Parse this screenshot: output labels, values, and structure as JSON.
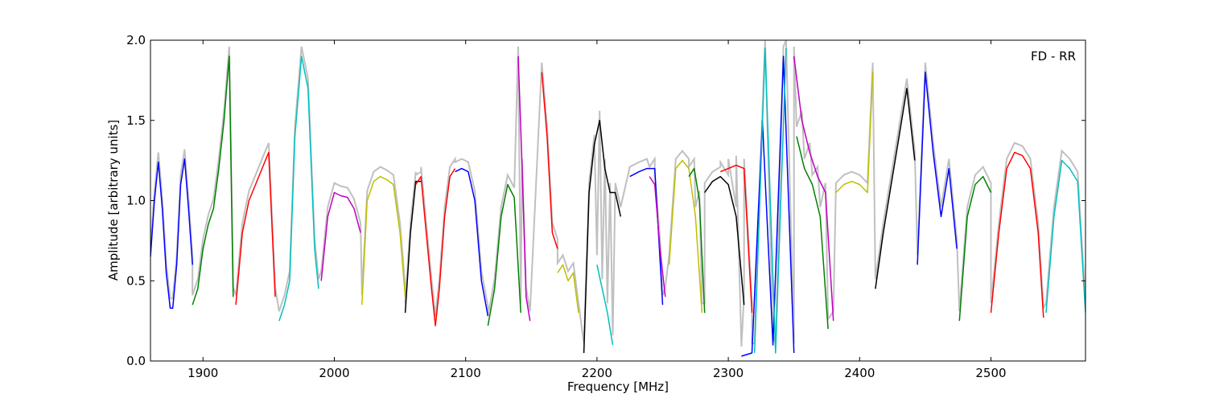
{
  "chart_data": {
    "type": "line",
    "annotation": "FD - RR",
    "xlabel": "Frequency [MHz]",
    "ylabel": "Amplitude [arbitrary units]",
    "xlim": [
      1860,
      2572
    ],
    "ylim": [
      0.0,
      2.0
    ],
    "xticks": [
      1900,
      2000,
      2100,
      2200,
      2300,
      2400,
      2500
    ],
    "xtick_labels": [
      "1900",
      "2000",
      "2100",
      "2200",
      "2300",
      "2400",
      "2500"
    ],
    "yticks": [
      0.0,
      0.5,
      1.0,
      1.5,
      2.0
    ],
    "ytick_labels": [
      "0.0",
      "0.5",
      "1.0",
      "1.5",
      "2.0"
    ],
    "grid": false,
    "background_series_color": "#c0c0c0",
    "series": [
      {
        "color": "#0000ff",
        "x": [
          1860,
          1863,
          1866,
          1869,
          1872,
          1875,
          1877,
          1880,
          1883,
          1886,
          1889,
          1892
        ],
        "y": [
          0.65,
          1.0,
          1.24,
          0.95,
          0.55,
          0.33,
          0.33,
          0.6,
          1.1,
          1.26,
          0.95,
          0.6
        ]
      },
      {
        "color": "#008000",
        "x": [
          1892,
          1896,
          1900,
          1904,
          1908,
          1912,
          1916,
          1920,
          1923
        ],
        "y": [
          0.35,
          0.45,
          0.7,
          0.85,
          0.95,
          1.2,
          1.5,
          1.9,
          0.4
        ]
      },
      {
        "color": "#ff0000",
        "x": [
          1925,
          1930,
          1935,
          1940,
          1945,
          1950,
          1955
        ],
        "y": [
          0.35,
          0.8,
          1.0,
          1.1,
          1.2,
          1.3,
          0.4
        ]
      },
      {
        "color": "#00bfbf",
        "x": [
          1958,
          1962,
          1966,
          1970,
          1975,
          1980,
          1985,
          1988
        ],
        "y": [
          0.25,
          0.35,
          0.5,
          1.4,
          1.9,
          1.7,
          0.7,
          0.45
        ]
      },
      {
        "color": "#bf00bf",
        "x": [
          1990,
          1995,
          2000,
          2005,
          2010,
          2015,
          2020
        ],
        "y": [
          0.5,
          0.9,
          1.05,
          1.03,
          1.02,
          0.95,
          0.8
        ]
      },
      {
        "color": "#bfbf00",
        "x": [
          2021,
          2025,
          2030,
          2035,
          2040,
          2045,
          2050,
          2054
        ],
        "y": [
          0.35,
          1.0,
          1.12,
          1.15,
          1.13,
          1.1,
          0.8,
          0.4
        ]
      },
      {
        "color": "#000000",
        "x": [
          2054,
          2058,
          2062,
          2066
        ],
        "y": [
          0.3,
          0.8,
          1.12,
          1.12
        ]
      },
      {
        "color": "#ff0000",
        "x": [
          2062,
          2066,
          2070,
          2074,
          2077,
          2080,
          2084,
          2088,
          2092
        ],
        "y": [
          1.1,
          1.15,
          0.8,
          0.45,
          0.22,
          0.45,
          0.9,
          1.15,
          1.2
        ]
      },
      {
        "color": "#0000ff",
        "x": [
          2092,
          2097,
          2102,
          2107,
          2112,
          2117
        ],
        "y": [
          1.18,
          1.2,
          1.18,
          1.0,
          0.5,
          0.28
        ]
      },
      {
        "color": "#008000",
        "x": [
          2117,
          2122,
          2127,
          2132,
          2137,
          2142
        ],
        "y": [
          0.22,
          0.45,
          0.9,
          1.1,
          1.02,
          0.3
        ]
      },
      {
        "color": "#bf00bf",
        "x": [
          2140,
          2143,
          2146,
          2149
        ],
        "y": [
          1.9,
          1.2,
          0.4,
          0.25
        ]
      },
      {
        "color": "#ff0000",
        "x": [
          2158,
          2162,
          2166,
          2170
        ],
        "y": [
          1.8,
          1.4,
          0.8,
          0.7
        ]
      },
      {
        "color": "#bfbf00",
        "x": [
          2170,
          2174,
          2178,
          2182,
          2186
        ],
        "y": [
          0.55,
          0.6,
          0.5,
          0.55,
          0.3
        ]
      },
      {
        "color": "#000000",
        "x": [
          2190,
          2194,
          2198,
          2202,
          2206,
          2210,
          2214,
          2218
        ],
        "y": [
          0.05,
          1.05,
          1.35,
          1.5,
          1.2,
          1.05,
          1.05,
          0.9
        ]
      },
      {
        "color": "#00bfbf",
        "x": [
          2200,
          2204,
          2208,
          2212
        ],
        "y": [
          0.6,
          0.45,
          0.3,
          0.1
        ]
      },
      {
        "color": "#0000ff",
        "x": [
          2225,
          2232,
          2238,
          2244,
          2250
        ],
        "y": [
          1.15,
          1.18,
          1.2,
          1.2,
          0.35
        ]
      },
      {
        "color": "#bf00bf",
        "x": [
          2240,
          2244,
          2248,
          2252
        ],
        "y": [
          1.15,
          1.1,
          0.7,
          0.4
        ]
      },
      {
        "color": "#bfbf00",
        "x": [
          2255,
          2260,
          2265,
          2270,
          2275,
          2280
        ],
        "y": [
          0.6,
          1.2,
          1.25,
          1.2,
          0.9,
          0.3
        ]
      },
      {
        "color": "#008000",
        "x": [
          2270,
          2274,
          2278,
          2282
        ],
        "y": [
          1.15,
          1.2,
          1.0,
          0.3
        ]
      },
      {
        "color": "#000000",
        "x": [
          2282,
          2288,
          2294,
          2300,
          2306,
          2312
        ],
        "y": [
          1.05,
          1.12,
          1.15,
          1.1,
          0.9,
          0.35
        ]
      },
      {
        "color": "#ff0000",
        "x": [
          2294,
          2300,
          2306,
          2312,
          2318
        ],
        "y": [
          1.18,
          1.2,
          1.22,
          1.2,
          0.3
        ]
      },
      {
        "color": "#0000ff",
        "x": [
          2310,
          2318,
          2326,
          2334,
          2342,
          2350
        ],
        "y": [
          0.03,
          0.05,
          1.5,
          0.1,
          1.9,
          0.05
        ]
      },
      {
        "color": "#00bfbf",
        "x": [
          2320,
          2328,
          2336,
          2344
        ],
        "y": [
          0.05,
          1.95,
          0.05,
          1.95
        ]
      },
      {
        "color": "#bf00bf",
        "x": [
          2350,
          2356,
          2362,
          2368,
          2374,
          2380
        ],
        "y": [
          1.9,
          1.5,
          1.3,
          1.15,
          1.05,
          0.25
        ]
      },
      {
        "color": "#008000",
        "x": [
          2352,
          2358,
          2364,
          2370,
          2376
        ],
        "y": [
          1.4,
          1.2,
          1.1,
          0.9,
          0.2
        ]
      },
      {
        "color": "#bfbf00",
        "x": [
          2382,
          2388,
          2394,
          2400,
          2406,
          2410
        ],
        "y": [
          1.05,
          1.1,
          1.12,
          1.1,
          1.05,
          1.8
        ]
      },
      {
        "color": "#000000",
        "x": [
          2412,
          2418,
          2424,
          2430,
          2436,
          2442
        ],
        "y": [
          0.45,
          0.8,
          1.1,
          1.4,
          1.7,
          1.25
        ]
      },
      {
        "color": "#0000ff",
        "x": [
          2444,
          2450,
          2456,
          2462,
          2468,
          2474
        ],
        "y": [
          0.6,
          1.8,
          1.3,
          0.9,
          1.2,
          0.7
        ]
      },
      {
        "color": "#008000",
        "x": [
          2476,
          2482,
          2488,
          2494,
          2500
        ],
        "y": [
          0.25,
          0.9,
          1.1,
          1.15,
          1.05
        ]
      },
      {
        "color": "#ff0000",
        "x": [
          2500,
          2506,
          2512,
          2518,
          2524,
          2530,
          2536,
          2540
        ],
        "y": [
          0.3,
          0.8,
          1.2,
          1.3,
          1.28,
          1.2,
          0.8,
          0.27
        ]
      },
      {
        "color": "#00bfbf",
        "x": [
          2542,
          2548,
          2554,
          2560,
          2566,
          2572
        ],
        "y": [
          0.3,
          0.9,
          1.25,
          1.2,
          1.12,
          0.3
        ]
      }
    ]
  }
}
